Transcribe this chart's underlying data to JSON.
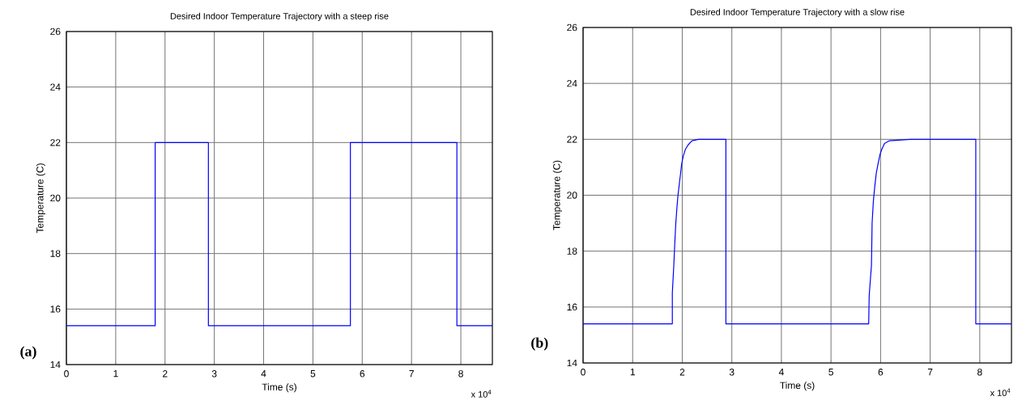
{
  "chart_data": [
    {
      "type": "line",
      "title": "Desired Indoor Temperature Trajectory with a steep rise",
      "xlabel": "Time (s)",
      "ylabel": "Temperature (C)",
      "annotations": [
        "(a)",
        "x 10$^{4}$"
      ],
      "xlim": [
        0,
        8.64
      ],
      "ylim": [
        14,
        26
      ],
      "xticks": [
        0,
        1,
        2,
        3,
        4,
        5,
        6,
        7,
        8
      ],
      "yticks": [
        14,
        16,
        18,
        20,
        22,
        24,
        26
      ],
      "grid": true,
      "series": [
        {
          "color": "#0000ff",
          "x": [
            0,
            1.8,
            1.8,
            2.88,
            2.88,
            5.76,
            5.76,
            7.92,
            7.92,
            8.64
          ],
          "values": [
            15.4,
            15.4,
            22,
            22,
            15.4,
            15.4,
            22,
            22,
            15.4,
            15.4
          ]
        }
      ]
    },
    {
      "type": "line",
      "title": "Desired Indoor Temperature Trajectory with a slow rise",
      "xlabel": "Time (s)",
      "ylabel": "Temperature (C)",
      "annotations": [
        "(b)",
        "x 10$^{4}$"
      ],
      "xlim": [
        0,
        8.64
      ],
      "ylim": [
        14,
        26
      ],
      "xticks": [
        0,
        1,
        2,
        3,
        4,
        5,
        6,
        7,
        8
      ],
      "yticks": [
        14,
        16,
        18,
        20,
        22,
        24,
        26
      ],
      "grid": true,
      "series": [
        {
          "color": "#0000ff",
          "x": [
            0,
            1.8,
            1.8,
            1.83,
            1.85,
            1.87,
            1.895,
            1.914,
            1.934,
            1.961,
            1.987,
            2.02,
            2.066,
            2.118,
            2.197,
            2.329,
            2.59,
            2.88,
            2.88,
            5.76,
            5.76,
            5.77,
            5.816,
            5.829,
            5.855,
            5.882,
            5.914,
            5.947,
            5.987,
            6.026,
            6.079,
            6.178,
            6.605,
            7.92,
            7.92,
            8.64
          ],
          "values": [
            15.4,
            15.4,
            16.5,
            17.5,
            18.3,
            19.0,
            19.6,
            20.0,
            20.3,
            20.7,
            21.1,
            21.4,
            21.65,
            21.8,
            21.95,
            22,
            22,
            22,
            15.4,
            15.4,
            15.4,
            16.4,
            17.5,
            19.0,
            19.8,
            20.3,
            20.8,
            21.1,
            21.45,
            21.65,
            21.85,
            21.95,
            22,
            22,
            15.4,
            15.4
          ]
        }
      ]
    }
  ]
}
